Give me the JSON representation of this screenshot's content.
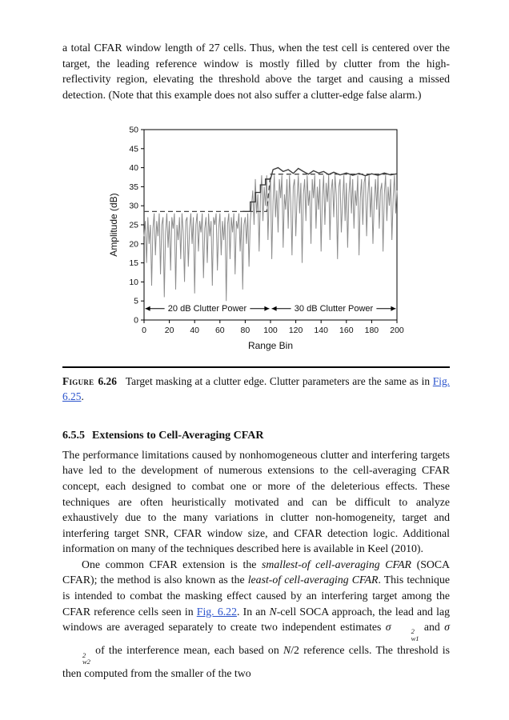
{
  "page": {
    "intro_paragraph": "a total CFAR window length of 27 cells. Thus, when the test cell is centered over the target, the leading reference window is mostly filled by clutter from the high-reflectivity region, elevating the threshold above the target and causing a missed detection. (Note that this example does not also suffer a clutter-edge false alarm.)",
    "caption": {
      "label": "Figure",
      "number": "6.26",
      "segments": [
        {
          "t": "Target masking at a clutter edge. Clutter parameters are the same as in "
        },
        {
          "t": "Fig. 6.25",
          "s": "link"
        },
        {
          "t": "."
        }
      ]
    },
    "section": {
      "number": "6.5.5",
      "title": "Extensions to Cell-Averaging CFAR",
      "paragraph1": "The performance limitations caused by nonhomogeneous clutter and interfering targets have led to the development of numerous extensions to the cell-averaging CFAR concept, each designed to combat one or more of the deleterious effects. These techniques are often heuristically motivated and can be difficult to analyze exhaustively due to the many variations in clutter non-homogeneity, target and interfering target SNR, CFAR window size, and CFAR detection logic. Additional information on many of the techniques described here is available in Keel (2010).",
      "paragraph2_segments": [
        {
          "t": "One common CFAR extension is the "
        },
        {
          "t": "smallest-of cell-averaging CFAR",
          "s": "i"
        },
        {
          "t": " (SOCA CFAR); the method is also known as the "
        },
        {
          "t": "least-of cell-averaging CFAR",
          "s": "i"
        },
        {
          "t": ". This technique is intended to combat the masking effect caused by an interfering target among the CFAR reference cells seen in "
        },
        {
          "t": "Fig. 6.22",
          "s": "link"
        },
        {
          "t": ". In an "
        },
        {
          "t": "N",
          "s": "i"
        },
        {
          "t": "-cell SOCA approach, the lead and lag windows are averaged separately to create two independent estimates "
        },
        {
          "base": "σ",
          "sup": "2",
          "sub": "w1",
          "s": "ss"
        },
        {
          "t": " and "
        },
        {
          "base": "σ",
          "sup": "2",
          "sub": "w2",
          "s": "ss"
        },
        {
          "t": " of the interference mean, each based on "
        },
        {
          "t": "N",
          "s": "i"
        },
        {
          "t": "/2 reference cells. The threshold is then computed from the smaller of the two"
        }
      ]
    }
  },
  "chart_data": {
    "type": "line",
    "title": "",
    "xlabel": "Range Bin",
    "ylabel": "Amplitude (dB)",
    "xlim": [
      0,
      200
    ],
    "ylim": [
      0,
      50
    ],
    "x_ticks": [
      0,
      20,
      40,
      60,
      80,
      100,
      120,
      140,
      160,
      180,
      200
    ],
    "y_ticks": [
      0,
      5,
      10,
      15,
      20,
      25,
      30,
      35,
      40,
      45,
      50
    ],
    "grid": false,
    "legend": "none",
    "series": [
      {
        "name": "received-signal-amplitude",
        "color": "#8c8c8c",
        "width": 1,
        "values": [
          22,
          26,
          15,
          27,
          20,
          25,
          9,
          24,
          28,
          17,
          26,
          22,
          28,
          12,
          25,
          27,
          6,
          23,
          28,
          19,
          26,
          13,
          27,
          24,
          28,
          8,
          25,
          21,
          27,
          16,
          28,
          23,
          10,
          26,
          27,
          14,
          24,
          28,
          20,
          27,
          7,
          25,
          28,
          18,
          26,
          23,
          28,
          11,
          24,
          27,
          15,
          28,
          22,
          26,
          9,
          27,
          25,
          28,
          13,
          24,
          28,
          17,
          26,
          21,
          27,
          5,
          25,
          28,
          16,
          27,
          23,
          28,
          12,
          26,
          24,
          28,
          18,
          27,
          8,
          25,
          27,
          20,
          28,
          14,
          26,
          30,
          34,
          25,
          37,
          28,
          33,
          18,
          32,
          38,
          26,
          35,
          30,
          38,
          21,
          33,
          37,
          16,
          31,
          38,
          27,
          34,
          23,
          37,
          32,
          38,
          19,
          33,
          29,
          37,
          24,
          38,
          31,
          17,
          35,
          37,
          22,
          32,
          38,
          28,
          36,
          15,
          33,
          37,
          26,
          38,
          30,
          34,
          20,
          37,
          32,
          38,
          24,
          35,
          29,
          37,
          18,
          32,
          38,
          25,
          36,
          31,
          38,
          21,
          34,
          37,
          27,
          38,
          33,
          16,
          35,
          37,
          23,
          31,
          38,
          26,
          36,
          19,
          33,
          38,
          28,
          37,
          24,
          34,
          30,
          38,
          17,
          32,
          37,
          25,
          36,
          38,
          22,
          33,
          38,
          27,
          35,
          20,
          31,
          37,
          29,
          38,
          24,
          34,
          36,
          18,
          33,
          38,
          26,
          35,
          30,
          37,
          21,
          32,
          38,
          28,
          34
        ]
      },
      {
        "name": "cfar-threshold",
        "color": "#3c3c3c",
        "width": 1.4,
        "x": [
          78,
          84,
          84,
          88,
          88,
          92,
          92,
          96,
          96,
          100,
          102,
          106,
          110,
          114,
          118,
          122,
          126,
          130,
          134,
          138,
          142,
          146,
          150,
          155,
          160,
          165,
          170,
          175,
          180,
          185,
          190,
          195,
          200
        ],
        "values": [
          28.5,
          28.5,
          31,
          31,
          33.5,
          33.5,
          35.5,
          35.5,
          37,
          37,
          39.5,
          40,
          39,
          39.5,
          38.5,
          39.8,
          39,
          38.3,
          39.2,
          38.6,
          39,
          38.2,
          38.8,
          38.1,
          38.6,
          38,
          38.5,
          37.9,
          38.4,
          38,
          38.6,
          38.1,
          38.4
        ]
      },
      {
        "name": "mean-clutter-power-dashed",
        "color": "#444444",
        "width": 1.3,
        "dash": "6,4",
        "x": [
          0,
          97,
          100,
          200
        ],
        "values": [
          28.5,
          28.5,
          38.3,
          38.3
        ]
      }
    ],
    "annotations": [
      {
        "text": "20 dB Clutter Power",
        "x1": 1,
        "x2": 99,
        "y": 3
      },
      {
        "text": "30 dB Clutter Power",
        "x1": 101,
        "x2": 199,
        "y": 3
      }
    ]
  }
}
